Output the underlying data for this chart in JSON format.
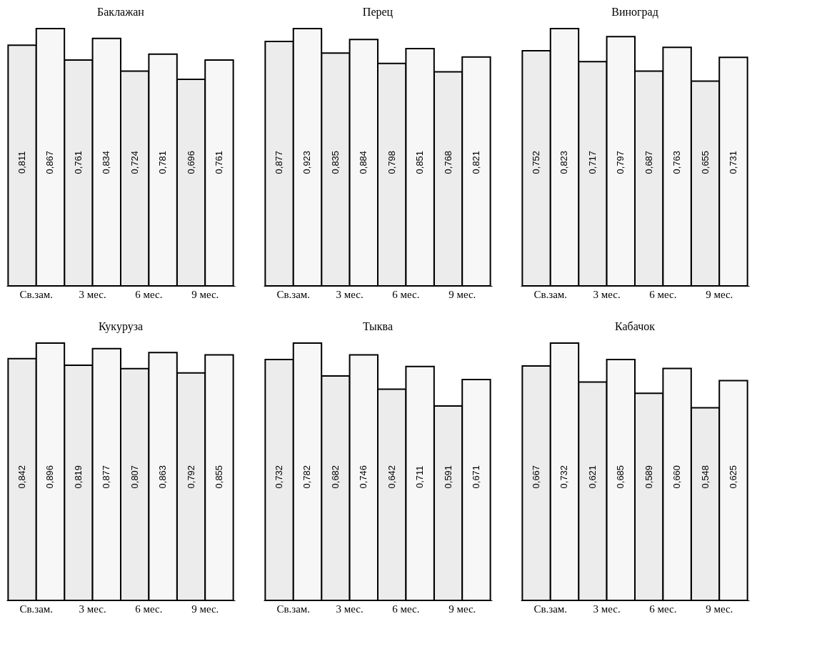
{
  "chart_data": [
    {
      "type": "bar",
      "title": "Баклажан",
      "categories": [
        "Св.зам.",
        "3 мес.",
        "6 мес.",
        "9 мес."
      ],
      "series": [
        {
          "color": "#ececec",
          "values": [
            0.811,
            0.761,
            0.724,
            0.696
          ],
          "value_labels": [
            "0,811",
            "0,761",
            "0,724",
            "0,696"
          ]
        },
        {
          "color": "#f7f7f7",
          "values": [
            0.867,
            0.834,
            0.781,
            0.761
          ],
          "value_labels": [
            "0,867",
            "0,834",
            "0,781",
            "0,761"
          ]
        }
      ]
    },
    {
      "type": "bar",
      "title": "Перец",
      "categories": [
        "Св.зам.",
        "3 мес.",
        "6 мес.",
        "9 мес."
      ],
      "series": [
        {
          "color": "#ececec",
          "values": [
            0.877,
            0.835,
            0.798,
            0.768
          ],
          "value_labels": [
            "0,877",
            "0,835",
            "0,798",
            "0,768"
          ]
        },
        {
          "color": "#f7f7f7",
          "values": [
            0.923,
            0.884,
            0.851,
            0.821
          ],
          "value_labels": [
            "0,923",
            "0,884",
            "0,851",
            "0,821"
          ]
        }
      ]
    },
    {
      "type": "bar",
      "title": "Виноград",
      "categories": [
        "Св.зам.",
        "3 мес.",
        "6 мес.",
        "9 мес."
      ],
      "series": [
        {
          "color": "#ececec",
          "values": [
            0.752,
            0.717,
            0.687,
            0.655
          ],
          "value_labels": [
            "0,752",
            "0,717",
            "0,687",
            "0,655"
          ]
        },
        {
          "color": "#f7f7f7",
          "values": [
            0.823,
            0.797,
            0.763,
            0.731
          ],
          "value_labels": [
            "0,823",
            "0,797",
            "0,763",
            "0,731"
          ]
        }
      ]
    },
    {
      "type": "bar",
      "title": "Кукуруза",
      "categories": [
        "Св.зам.",
        "3 мес.",
        "6 мес.",
        "9 мес."
      ],
      "series": [
        {
          "color": "#ececec",
          "values": [
            0.842,
            0.819,
            0.807,
            0.792
          ],
          "value_labels": [
            "0,842",
            "0,819",
            "0,807",
            "0,792"
          ]
        },
        {
          "color": "#f7f7f7",
          "values": [
            0.896,
            0.877,
            0.863,
            0.855
          ],
          "value_labels": [
            "0,896",
            "0,877",
            "0,863",
            "0,855"
          ]
        }
      ]
    },
    {
      "type": "bar",
      "title": "Тыква",
      "categories": [
        "Св.зам.",
        "3 мес.",
        "6 мес.",
        "9 мес."
      ],
      "series": [
        {
          "color": "#ececec",
          "values": [
            0.732,
            0.682,
            0.642,
            0.591
          ],
          "value_labels": [
            "0,732",
            "0,682",
            "0,642",
            "0,591"
          ]
        },
        {
          "color": "#f7f7f7",
          "values": [
            0.782,
            0.746,
            0.711,
            0.671
          ],
          "value_labels": [
            "0,782",
            "0,746",
            "0,711",
            "0,671"
          ]
        }
      ]
    },
    {
      "type": "bar",
      "title": "Кабачок",
      "categories": [
        "Св.зам.",
        "3 мес.",
        "6 мес.",
        "9 мес."
      ],
      "series": [
        {
          "color": "#ececec",
          "values": [
            0.667,
            0.621,
            0.589,
            0.548
          ],
          "value_labels": [
            "0,667",
            "0,621",
            "0,589",
            "0,548"
          ]
        },
        {
          "color": "#f7f7f7",
          "values": [
            0.732,
            0.685,
            0.66,
            0.625
          ],
          "value_labels": [
            "0,732",
            "0,685",
            "0,660",
            "0,625"
          ]
        }
      ]
    }
  ]
}
